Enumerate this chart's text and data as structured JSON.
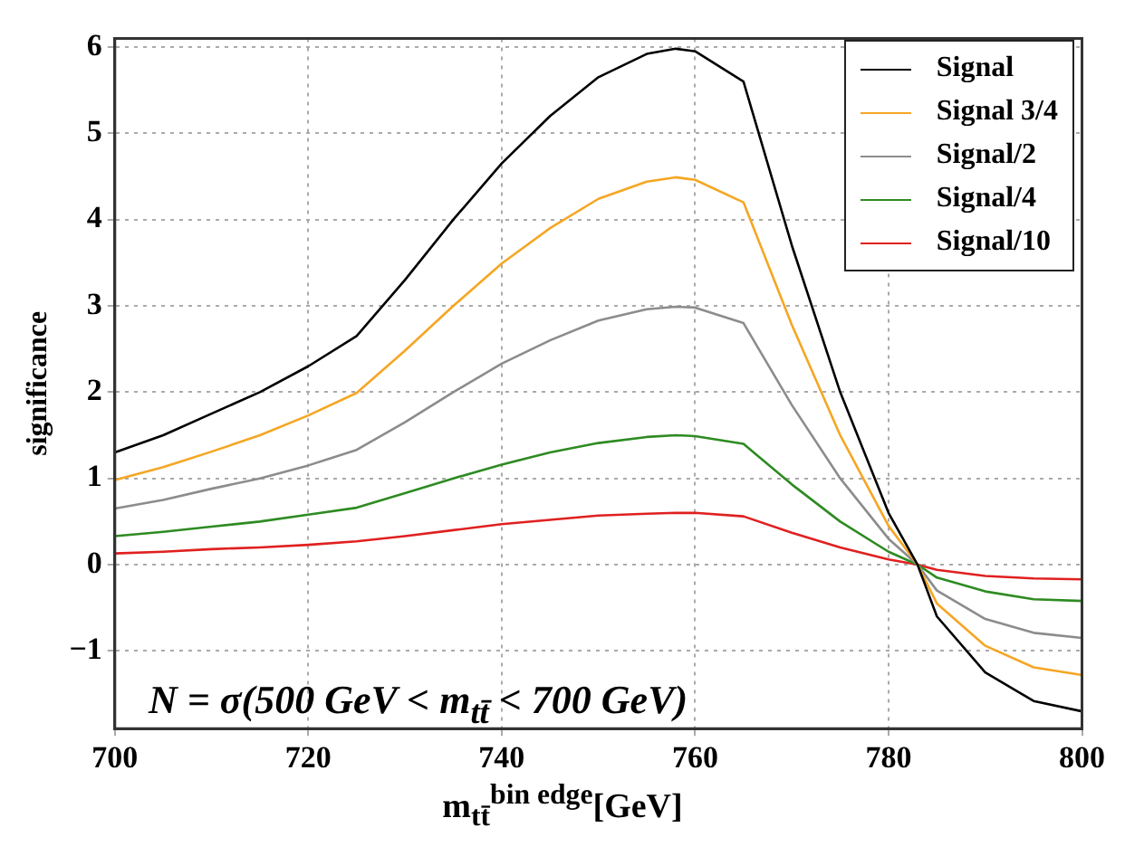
{
  "chart_data": {
    "type": "line",
    "x": [
      700,
      705,
      710,
      715,
      720,
      725,
      730,
      735,
      740,
      745,
      750,
      755,
      758,
      760,
      765,
      770,
      775,
      780,
      783,
      785,
      790,
      795,
      800
    ],
    "series": [
      {
        "name": "Signal",
        "color": "#000000",
        "values": [
          1.3,
          1.5,
          1.75,
          2.0,
          2.3,
          2.65,
          3.3,
          4.0,
          4.65,
          5.2,
          5.65,
          5.92,
          5.98,
          5.95,
          5.6,
          3.7,
          2.0,
          0.6,
          0,
          -0.6,
          -1.25,
          -1.58,
          -1.7
        ]
      },
      {
        "name": "Signal 3/4",
        "color": "#f5a623",
        "values": [
          0.98,
          1.13,
          1.31,
          1.5,
          1.73,
          1.99,
          2.48,
          3.0,
          3.49,
          3.9,
          4.24,
          4.44,
          4.49,
          4.46,
          4.2,
          2.78,
          1.5,
          0.45,
          0,
          -0.45,
          -0.94,
          -1.19,
          -1.28
        ]
      },
      {
        "name": "Signal/2",
        "color": "#8c8c8c",
        "values": [
          0.65,
          0.75,
          0.88,
          1.0,
          1.15,
          1.33,
          1.65,
          2.0,
          2.33,
          2.6,
          2.83,
          2.96,
          2.99,
          2.98,
          2.8,
          1.85,
          1.0,
          0.3,
          0,
          -0.3,
          -0.63,
          -0.79,
          -0.85
        ]
      },
      {
        "name": "Signal/4",
        "color": "#2e8b22",
        "values": [
          0.33,
          0.38,
          0.44,
          0.5,
          0.58,
          0.66,
          0.83,
          1.0,
          1.16,
          1.3,
          1.41,
          1.48,
          1.5,
          1.49,
          1.4,
          0.93,
          0.5,
          0.15,
          0,
          -0.15,
          -0.31,
          -0.4,
          -0.42
        ]
      },
      {
        "name": "Signal/10",
        "color": "#e02020",
        "values": [
          0.13,
          0.15,
          0.18,
          0.2,
          0.23,
          0.27,
          0.33,
          0.4,
          0.47,
          0.52,
          0.57,
          0.59,
          0.6,
          0.6,
          0.56,
          0.37,
          0.2,
          0.06,
          0,
          -0.06,
          -0.13,
          -0.16,
          -0.17
        ]
      }
    ],
    "xlabel": "m$_{tt̄}$$^{bin edge}$[GeV]",
    "ylabel": "significance",
    "annotations": [
      "N = σ(500 GeV < m$_{tt̄}$ < 700 GeV)"
    ],
    "xlim": [
      700,
      800
    ],
    "xticks": [
      700,
      720,
      740,
      760,
      780,
      800
    ],
    "ylim": [
      -1.9,
      6.1
    ],
    "yticks": [
      {
        "value": -1,
        "label": "−1"
      },
      0,
      1,
      2,
      3,
      4,
      5,
      6
    ],
    "grid": true,
    "legend": "top right",
    "marker": "none",
    "line_style": "solid"
  }
}
